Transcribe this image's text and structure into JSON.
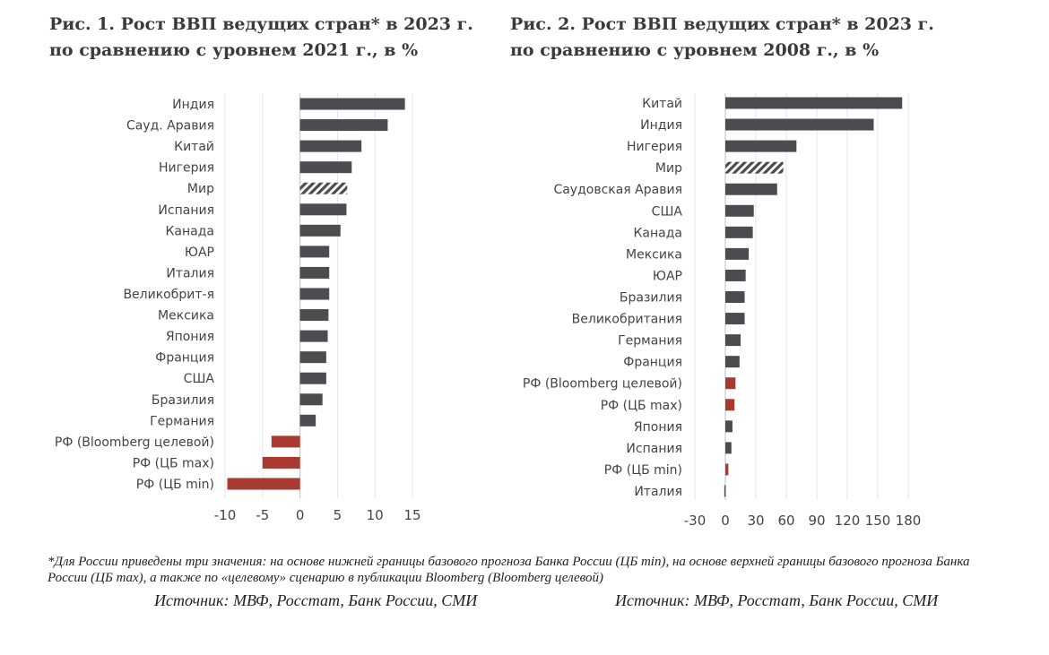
{
  "chart_data": [
    {
      "type": "bar",
      "orientation": "horizontal",
      "title": "Рис. 1. Рост ВВП ведущих стран* в 2023 г. по сравнению с уровнем 2021 г., в %",
      "categories": [
        "Индия",
        "Сауд. Аравия",
        "Китай",
        "Нигерия",
        "Мир",
        "Испания",
        "Канада",
        "ЮАР",
        "Италия",
        "Великобрит-я",
        "Мексика",
        "Япония",
        "Франция",
        "США",
        "Бразилия",
        "Германия",
        "РФ (Bloomberg целевой)",
        "РФ (ЦБ max)",
        "РФ (ЦБ min)"
      ],
      "values": [
        14.0,
        11.7,
        8.2,
        6.9,
        6.3,
        6.2,
        5.4,
        3.9,
        3.9,
        3.9,
        3.8,
        3.7,
        3.5,
        3.5,
        3.0,
        2.1,
        -3.8,
        -5.0,
        -9.7
      ],
      "bar_styles": [
        "dark",
        "dark",
        "dark",
        "dark",
        "hatched",
        "dark",
        "dark",
        "dark",
        "dark",
        "dark",
        "dark",
        "dark",
        "dark",
        "dark",
        "dark",
        "dark",
        "red",
        "red",
        "red"
      ],
      "xlim": [
        -10,
        15
      ],
      "xticks": [
        -10,
        -5,
        0,
        5,
        10,
        15
      ],
      "grid": true
    },
    {
      "type": "bar",
      "orientation": "horizontal",
      "title": "Рис. 2. Рост ВВП ведущих стран* в 2023 г. по сравнению с уровнем 2008 г., в %",
      "categories": [
        "Китай",
        "Индия",
        "Нигерия",
        "Мир",
        "Саудовская Аравия",
        "США",
        "Канада",
        "Мексика",
        "ЮАР",
        "Бразилия",
        "Великобритания",
        "Германия",
        "Франция",
        "РФ (Bloomberg целевой)",
        "РФ (ЦБ max)",
        "Япония",
        "Испания",
        "РФ (ЦБ min)",
        "Италия"
      ],
      "values": [
        174,
        146,
        70,
        57,
        51,
        28,
        27,
        23,
        20,
        19,
        19,
        15,
        14,
        10,
        9,
        7,
        6,
        3,
        -1
      ],
      "bar_styles": [
        "dark",
        "dark",
        "dark",
        "hatched",
        "dark",
        "dark",
        "dark",
        "dark",
        "dark",
        "dark",
        "dark",
        "dark",
        "dark",
        "red",
        "red",
        "dark",
        "dark",
        "red",
        "dark"
      ],
      "xlim": [
        -30,
        180
      ],
      "xticks": [
        -30,
        0,
        30,
        60,
        90,
        120,
        150,
        180
      ],
      "grid": true
    }
  ],
  "colors": {
    "dark": "#4a4c50",
    "red": "#a83a32",
    "grid": "#e6e6e6",
    "axis": "#c8c8c8"
  },
  "footnote": "*Для России приведены три значения: на основе нижней границы базового прогноза Банка России (ЦБ min), на основе верхней границы базового прогноза Банка России (ЦБ max), а также по «целевому» сценарию в публикации Bloomberg (Bloomberg целевой)",
  "source_left": "Источник: МВФ, Росстат, Банк России, СМИ",
  "source_right": "Источник: МВФ, Росстат, Банк России, СМИ"
}
